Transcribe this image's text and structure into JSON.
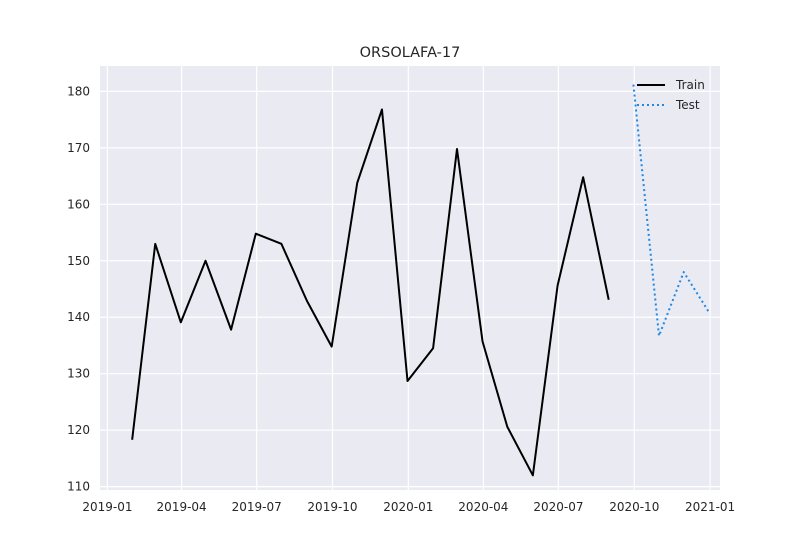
{
  "chart_data": {
    "type": "line",
    "title": "ORSOLAFA-17",
    "xlabel": "",
    "ylabel": "",
    "x_axis_type": "date",
    "xlim": [
      "2018-12-23",
      "2021-01-13"
    ],
    "ylim": [
      109.4,
      184.5
    ],
    "x_ticks": [
      {
        "date": "2019-01-01",
        "label": "2019-01"
      },
      {
        "date": "2019-04-01",
        "label": "2019-04"
      },
      {
        "date": "2019-07-01",
        "label": "2019-07"
      },
      {
        "date": "2019-10-01",
        "label": "2019-10"
      },
      {
        "date": "2020-01-01",
        "label": "2020-01"
      },
      {
        "date": "2020-04-01",
        "label": "2020-04"
      },
      {
        "date": "2020-07-01",
        "label": "2020-07"
      },
      {
        "date": "2020-10-01",
        "label": "2020-10"
      },
      {
        "date": "2021-01-01",
        "label": "2021-01"
      }
    ],
    "y_ticks": [
      110,
      120,
      130,
      140,
      150,
      160,
      170,
      180
    ],
    "grid": true,
    "background": "#eaeaf2",
    "legend": {
      "position": "top-right"
    },
    "series": [
      {
        "name": "Train",
        "color": "#000000",
        "style": "solid",
        "x": [
          "2019-01-31",
          "2019-02-28",
          "2019-03-31",
          "2019-04-30",
          "2019-05-31",
          "2019-06-30",
          "2019-07-31",
          "2019-08-31",
          "2019-09-30",
          "2019-10-31",
          "2019-11-30",
          "2019-12-31",
          "2020-01-31",
          "2020-02-29",
          "2020-03-31",
          "2020-04-30",
          "2020-05-31",
          "2020-06-30",
          "2020-07-31",
          "2020-08-31"
        ],
        "values": [
          118.3,
          153.0,
          139.1,
          150.0,
          137.8,
          154.8,
          153.0,
          142.9,
          134.8,
          163.8,
          176.8,
          128.7,
          134.5,
          169.8,
          135.7,
          120.6,
          112.0,
          145.6,
          164.8,
          143.1
        ]
      },
      {
        "name": "Test",
        "color": "#1e88e5",
        "style": "dotted",
        "x": [
          "2020-09-30",
          "2020-10-31",
          "2020-11-30",
          "2020-12-31"
        ],
        "values": [
          181.2,
          136.7,
          148.0,
          140.8
        ]
      }
    ]
  }
}
